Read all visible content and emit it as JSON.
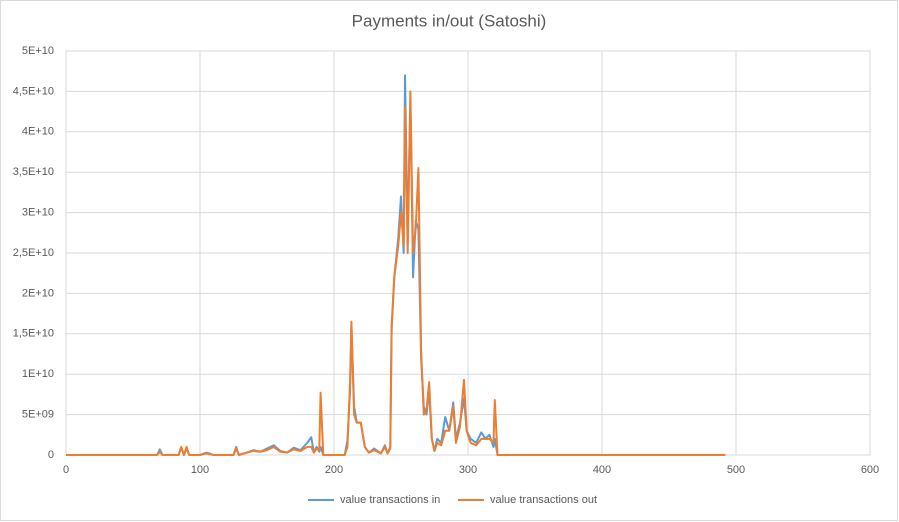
{
  "chart_data": {
    "type": "line",
    "title": "Payments in/out (Satoshi)",
    "x": [
      0,
      60,
      68,
      70,
      72,
      75,
      84,
      86,
      88,
      90,
      92,
      100,
      105,
      110,
      125,
      127,
      129,
      135,
      140,
      145,
      150,
      155,
      160,
      165,
      170,
      175,
      180,
      183,
      185,
      187,
      189,
      190,
      192,
      200,
      208,
      210,
      212,
      213,
      215,
      217,
      220,
      223,
      226,
      230,
      235,
      238,
      240,
      242,
      243,
      245,
      248,
      250,
      252,
      253,
      255,
      257,
      259,
      261,
      263,
      265,
      267,
      269,
      271,
      273,
      275,
      277,
      280,
      283,
      286,
      289,
      291,
      294,
      297,
      299,
      302,
      306,
      310,
      313,
      316,
      319,
      320,
      322,
      400,
      492
    ],
    "series": [
      {
        "name": "value transactions in",
        "color": "#5b9bd5",
        "values": [
          0,
          0,
          0,
          700000000.0,
          0,
          0,
          0,
          900000000.0,
          0,
          800000000.0,
          0,
          0,
          300000000.0,
          0,
          0,
          1000000000.0,
          0,
          300000000.0,
          600000000.0,
          400000000.0,
          800000000.0,
          1200000000.0,
          500000000.0,
          300000000.0,
          900000000.0,
          600000000.0,
          1500000000.0,
          2200000000.0,
          300000000.0,
          1000000000.0,
          400000000.0,
          1000000000.0,
          0,
          0,
          0,
          1800000000.0,
          8000000000.0,
          16000000000.0,
          6000000000.0,
          4000000000.0,
          4000000000.0,
          1000000000.0,
          300000000.0,
          800000000.0,
          200000000.0,
          1200000000.0,
          200000000.0,
          1000000000.0,
          15500000000.0,
          22000000000.0,
          27000000000.0,
          32000000000.0,
          25000000000.0,
          47000000000.0,
          27000000000.0,
          44000000000.0,
          22000000000.0,
          29000000000.0,
          28000000000.0,
          12000000000.0,
          6000000000.0,
          5000000000.0,
          8000000000.0,
          2000000000.0,
          500000000.0,
          2000000000.0,
          1500000000.0,
          4700000000.0,
          3000000000.0,
          6500000000.0,
          2000000000.0,
          4000000000.0,
          7000000000.0,
          3000000000.0,
          2000000000.0,
          1500000000.0,
          2800000000.0,
          2000000000.0,
          2500000000.0,
          1000000000.0,
          2000000000.0,
          0,
          0,
          0
        ]
      },
      {
        "name": "value transactions out",
        "color": "#ed7d31",
        "values": [
          0,
          0,
          0,
          400000000.0,
          0,
          0,
          0,
          1000000000.0,
          0,
          1000000000.0,
          0,
          0,
          200000000.0,
          0,
          0,
          800000000.0,
          0,
          300000000.0,
          500000000.0,
          400000000.0,
          600000000.0,
          1000000000.0,
          400000000.0,
          300000000.0,
          700000000.0,
          500000000.0,
          1000000000.0,
          1000000000.0,
          300000000.0,
          800000000.0,
          500000000.0,
          7700000000.0,
          0,
          0,
          0,
          1000000000.0,
          9000000000.0,
          16500000000.0,
          5000000000.0,
          4000000000.0,
          4000000000.0,
          1000000000.0,
          300000000.0,
          600000000.0,
          200000000.0,
          1000000000.0,
          200000000.0,
          800000000.0,
          16000000000.0,
          22000000000.0,
          26000000000.0,
          30000000000.0,
          26000000000.0,
          43000000000.0,
          25000000000.0,
          45000000000.0,
          25000000000.0,
          28000000000.0,
          35500000000.0,
          13000000000.0,
          5000000000.0,
          5500000000.0,
          9000000000.0,
          2000000000.0,
          500000000.0,
          1500000000.0,
          1200000000.0,
          3000000000.0,
          3000000000.0,
          6000000000.0,
          1500000000.0,
          3500000000.0,
          9300000000.0,
          3000000000.0,
          1500000000.0,
          1200000000.0,
          2000000000.0,
          2000000000.0,
          2000000000.0,
          1500000000.0,
          6800000000.0,
          0,
          0,
          0
        ]
      }
    ],
    "xlim": [
      0,
      600
    ],
    "xticks": [
      0,
      100,
      200,
      300,
      400,
      500,
      600
    ],
    "ylim": [
      0,
      50000000000
    ],
    "yticks": [
      0,
      {
        "value": 5000000000,
        "label": "5E+09"
      },
      {
        "value": 10000000000,
        "label": "1E+10"
      },
      {
        "value": 15000000000,
        "label": "1,5E+10"
      },
      {
        "value": 20000000000,
        "label": "2E+10"
      },
      {
        "value": 25000000000,
        "label": "2,5E+10"
      },
      {
        "value": 30000000000,
        "label": "3E+10"
      },
      {
        "value": 35000000000,
        "label": "3,5E+10"
      },
      {
        "value": 40000000000,
        "label": "4E+10"
      },
      {
        "value": 45000000000,
        "label": "4,5E+10"
      },
      {
        "value": 50000000000,
        "label": "5E+10"
      }
    ],
    "grid": true,
    "legend": "bottom"
  }
}
